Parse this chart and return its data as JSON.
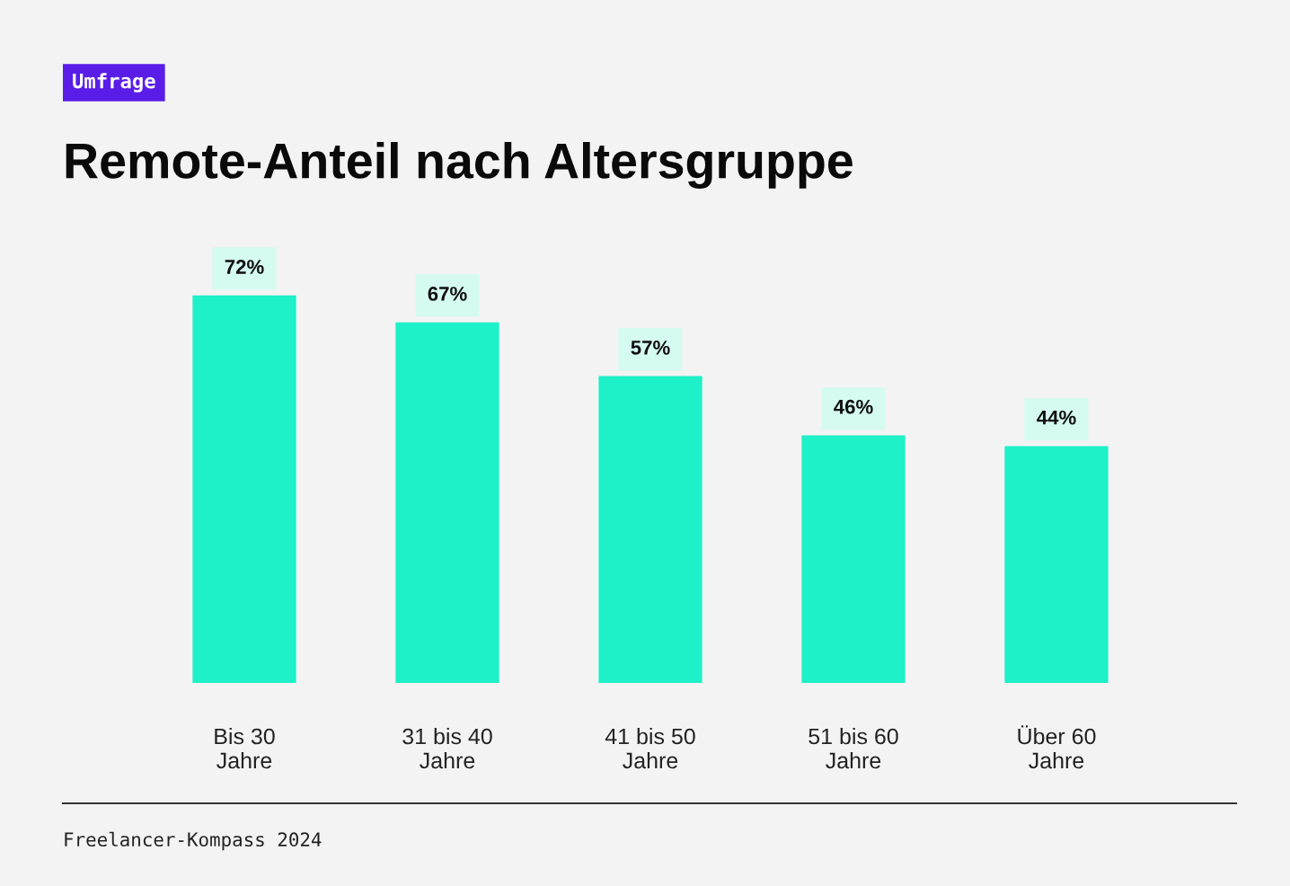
{
  "chart_data": {
    "type": "bar",
    "title": "Remote-Anteil nach Altersgruppe",
    "categories": [
      "Bis 30\nJahre",
      "31 bis 40\nJahre",
      "41 bis 50\nJahre",
      "51 bis 60\nJahre",
      "Über 60\nJahre"
    ],
    "values": [
      72,
      67,
      57,
      46,
      44
    ],
    "color": "#1ef0c8",
    "data_labels": true,
    "value_labels": [
      "72%",
      "67%",
      "57%",
      "46%",
      "44%"
    ],
    "annotations": [
      "Umfrage",
      "Freelancer-Kompass 2024"
    ]
  }
}
